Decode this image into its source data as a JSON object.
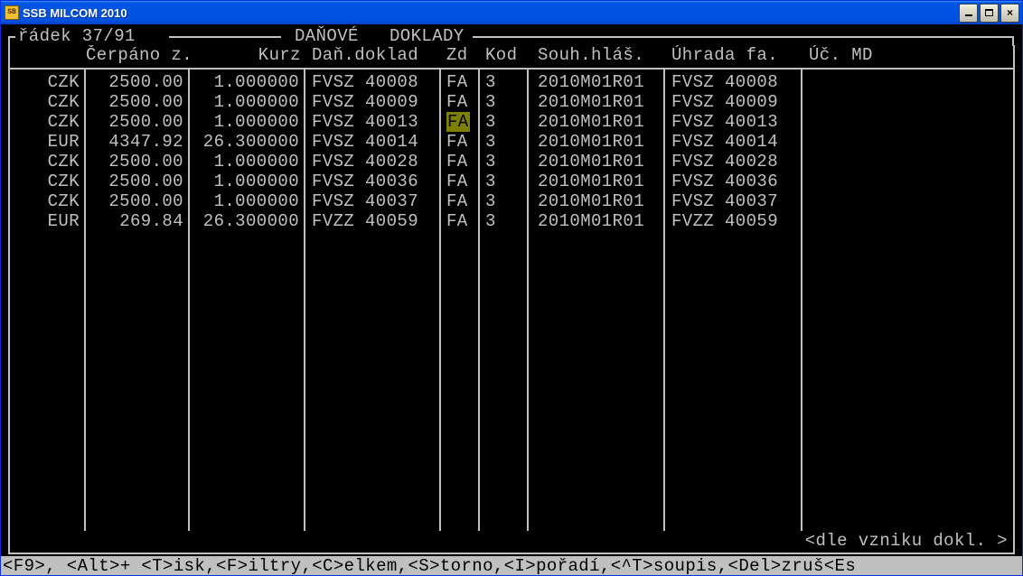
{
  "window": {
    "title": "SSB MILCOM 2010"
  },
  "frame": {
    "row_indicator": "řádek 37/91",
    "title1": "DAŇOVÉ",
    "title2": "DOKLADY"
  },
  "columns": {
    "c0": "",
    "c1": "Čerpáno z.",
    "c2": "Kurz",
    "c3": "Daň.doklad",
    "c4": "Zd",
    "c5": "Kod",
    "c6": "Souh.hláš.",
    "c7": "Úhrada fa.",
    "c8": "Úč. MD"
  },
  "rows": [
    {
      "cur": "CZK",
      "amt": "2500.00",
      "rate": "1.000000",
      "doc": "FVSZ 40008",
      "zd": "FA",
      "kod": "3",
      "sh": "2010M01R01",
      "uhr": "FVSZ 40008",
      "uc": ""
    },
    {
      "cur": "CZK",
      "amt": "2500.00",
      "rate": "1.000000",
      "doc": "FVSZ 40009",
      "zd": "FA",
      "kod": "3",
      "sh": "2010M01R01",
      "uhr": "FVSZ 40009",
      "uc": ""
    },
    {
      "cur": "CZK",
      "amt": "2500.00",
      "rate": "1.000000",
      "doc": "FVSZ 40013",
      "zd": "FA",
      "kod": "3",
      "sh": "2010M01R01",
      "uhr": "FVSZ 40013",
      "uc": "",
      "hl": true
    },
    {
      "cur": "EUR",
      "amt": "4347.92",
      "rate": "26.300000",
      "doc": "FVSZ 40014",
      "zd": "FA",
      "kod": "3",
      "sh": "2010M01R01",
      "uhr": "FVSZ 40014",
      "uc": ""
    },
    {
      "cur": "CZK",
      "amt": "2500.00",
      "rate": "1.000000",
      "doc": "FVSZ 40028",
      "zd": "FA",
      "kod": "3",
      "sh": "2010M01R01",
      "uhr": "FVSZ 40028",
      "uc": ""
    },
    {
      "cur": "CZK",
      "amt": "2500.00",
      "rate": "1.000000",
      "doc": "FVSZ 40036",
      "zd": "FA",
      "kod": "3",
      "sh": "2010M01R01",
      "uhr": "FVSZ 40036",
      "uc": ""
    },
    {
      "cur": "CZK",
      "amt": "2500.00",
      "rate": "1.000000",
      "doc": "FVSZ 40037",
      "zd": "FA",
      "kod": "3",
      "sh": "2010M01R01",
      "uhr": "FVSZ 40037",
      "uc": ""
    },
    {
      "cur": "EUR",
      "amt": "269.84",
      "rate": "26.300000",
      "doc": "FVZZ 40059",
      "zd": "FA",
      "kod": "3",
      "sh": "2010M01R01",
      "uhr": "FVZZ 40059",
      "uc": ""
    }
  ],
  "bottom_hint": "<dle vzniku dokl. >",
  "statusbar": "<F9>, <Alt>+ <T>isk,<F>iltry,<C>elkem,<S>torno,<I>pořadí,<^T>soupis,<Del>zruš<Es",
  "colors": {
    "terminal_bg": "#000000",
    "terminal_fg": "#c0c0c0",
    "highlight_bg": "#808000",
    "highlight_fg": "#000000",
    "status_bg": "#c0c0c0",
    "status_fg": "#000000",
    "titlebar_gradient_top": "#3a95ff",
    "titlebar_gradient_bottom": "#003bc3"
  }
}
